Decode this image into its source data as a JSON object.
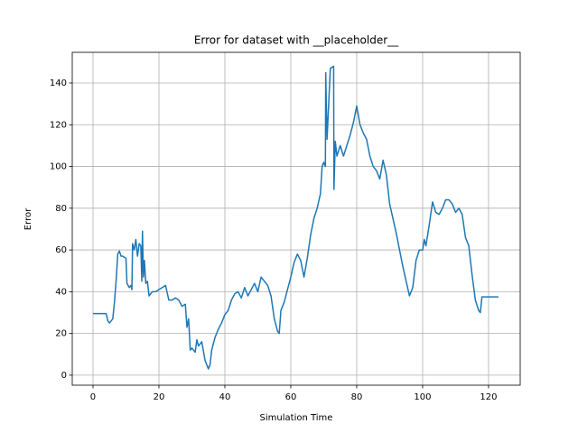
{
  "chart_data": {
    "type": "line",
    "title": "Error for dataset with __placeholder__",
    "xlabel": "Simulation Time",
    "ylabel": "Error",
    "x": [
      0,
      3,
      4,
      4.5,
      5,
      6,
      6.5,
      7,
      7.5,
      8,
      8.5,
      9,
      10,
      10.3,
      11,
      11.5,
      11.8,
      12,
      12.5,
      13,
      13.5,
      14,
      14.5,
      14.8,
      15,
      15.3,
      15.6,
      16,
      16.5,
      17,
      18,
      19,
      20,
      21,
      22,
      23,
      24,
      25,
      26,
      27,
      28,
      28.5,
      29,
      29.5,
      30,
      31,
      31.5,
      32,
      33,
      34,
      35,
      35.5,
      36,
      37,
      38,
      39,
      40,
      41,
      42,
      43,
      44,
      45,
      46,
      47,
      48,
      49,
      50,
      51,
      52,
      53,
      54,
      55,
      56,
      56.5,
      57,
      58,
      59,
      60,
      61,
      62,
      63,
      64,
      65,
      66,
      67,
      68,
      69,
      69.5,
      70,
      70.5,
      70.6,
      71,
      72,
      73,
      73.1,
      73.5,
      74,
      75,
      76,
      77,
      78,
      79,
      80,
      81,
      82,
      83,
      84,
      85,
      86,
      87,
      88,
      89,
      90,
      91,
      92,
      93,
      94,
      95,
      96,
      97,
      98,
      99,
      100,
      100.5,
      101,
      102,
      103,
      104,
      105,
      106,
      107,
      108,
      109,
      110,
      111,
      112,
      113,
      114,
      115,
      116,
      117,
      117.5,
      118,
      120,
      123
    ],
    "series": [
      {
        "name": "Error",
        "color": "#1f77b4",
        "values": [
          29.5,
          29.5,
          29.5,
          26,
          25,
          27,
          35,
          45,
          58,
          59.5,
          57,
          57,
          56,
          44,
          42,
          43,
          41,
          63,
          60,
          65,
          57,
          63,
          62,
          45,
          69,
          47,
          55,
          44,
          45,
          38,
          40,
          40,
          41,
          42,
          43,
          36,
          36,
          37,
          36,
          33,
          34,
          23,
          27,
          12,
          13,
          11,
          17,
          14,
          16,
          7,
          3,
          5,
          12,
          18,
          22,
          25,
          29,
          31,
          36,
          39,
          40,
          37,
          42,
          38,
          41,
          44,
          40,
          47,
          45,
          43,
          38,
          27,
          21,
          20,
          31,
          35,
          41,
          47,
          54,
          58,
          55,
          47,
          56,
          67,
          75,
          80,
          87,
          100,
          102,
          100,
          145,
          113,
          147,
          148,
          89,
          112,
          105,
          110,
          105,
          110,
          115,
          121,
          129,
          120,
          116,
          113,
          105,
          100,
          98,
          94,
          103,
          96,
          82,
          75,
          68,
          60,
          52,
          45,
          38,
          42,
          55,
          60,
          60,
          65,
          62,
          72,
          83,
          78,
          77,
          80,
          84,
          84,
          82,
          78,
          80,
          77,
          66,
          62,
          48,
          36,
          31,
          30,
          37.5,
          37.5,
          37.5
        ]
      }
    ],
    "xlim": [
      -6.3,
      129.6
    ],
    "ylim": [
      -4.8,
      154.7
    ],
    "xticks": [
      0,
      20,
      40,
      60,
      80,
      100,
      120
    ],
    "yticks": [
      0,
      20,
      40,
      60,
      80,
      100,
      120,
      140
    ],
    "grid": true
  }
}
